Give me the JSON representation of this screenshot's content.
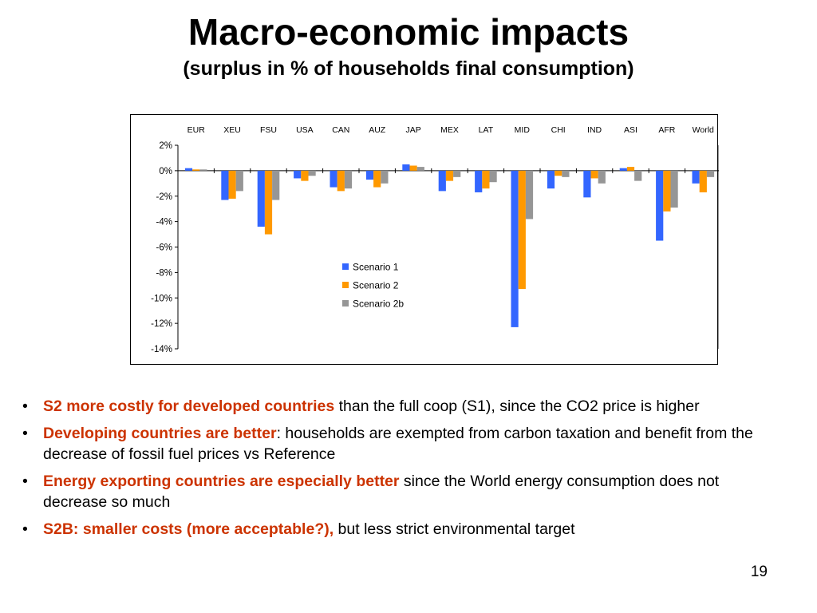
{
  "slide": {
    "title": "Macro-economic impacts",
    "subtitle": "(surplus in % of households final consumption)",
    "page_number": "19",
    "emphasis_color": "#cc3300",
    "bullets": [
      {
        "highlight": "S2 more costly for developed countries",
        "rest": " than the full coop (S1), since the CO2 price is higher"
      },
      {
        "highlight": "Developing countries are better",
        "rest": ": households are exempted from carbon taxation and benefit from the decrease of fossil fuel prices vs Reference"
      },
      {
        "highlight": "Energy exporting countries are especially better",
        "rest": " since the World energy consumption does not decrease so much"
      },
      {
        "highlight": "S2B: smaller costs (more acceptable?),",
        "rest": " but less strict environmental target"
      }
    ]
  },
  "chart_data": {
    "type": "bar",
    "title": "",
    "xlabel": "",
    "ylabel": "",
    "unit": "%",
    "categories": [
      "EUR",
      "XEU",
      "FSU",
      "USA",
      "CAN",
      "AUZ",
      "JAP",
      "MEX",
      "LAT",
      "MID",
      "CHI",
      "IND",
      "ASI",
      "AFR",
      "World"
    ],
    "category_axis_position": "top",
    "ylim": [
      -14,
      2
    ],
    "yticks": [
      2,
      0,
      -2,
      -4,
      -6,
      -8,
      -10,
      -12,
      -14
    ],
    "ytick_labels": [
      "2%",
      "0%",
      "-2%",
      "-4%",
      "-6%",
      "-8%",
      "-10%",
      "-12%",
      "-14%"
    ],
    "grid": false,
    "legend_position": "center",
    "series": [
      {
        "name": "Scenario 1",
        "color": "#3366ff",
        "values": [
          0.2,
          -2.3,
          -4.4,
          -0.6,
          -1.3,
          -0.7,
          0.5,
          -1.6,
          -1.7,
          -12.3,
          -1.4,
          -2.1,
          0.2,
          -5.5,
          -1.0
        ]
      },
      {
        "name": "Scenario 2",
        "color": "#ff9900",
        "values": [
          0.1,
          -2.2,
          -5.0,
          -0.8,
          -1.6,
          -1.3,
          0.4,
          -0.8,
          -1.4,
          -9.3,
          -0.4,
          -0.6,
          0.3,
          -3.2,
          -1.7
        ]
      },
      {
        "name": "Scenario 2b",
        "color": "#969696",
        "values": [
          0.1,
          -1.6,
          -2.3,
          -0.4,
          -1.4,
          -1.0,
          0.3,
          -0.5,
          -0.9,
          -3.8,
          -0.5,
          -1.0,
          -0.8,
          -2.9,
          -0.5
        ]
      }
    ]
  }
}
